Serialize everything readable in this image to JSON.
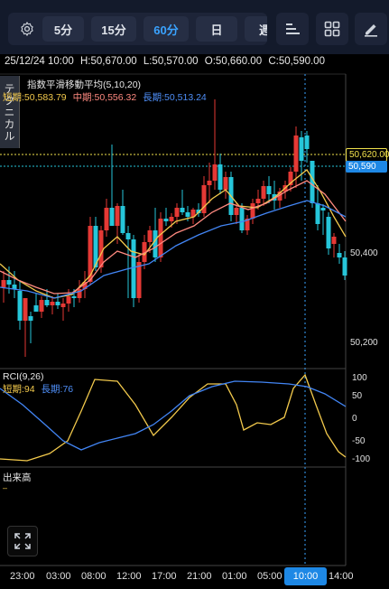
{
  "toolbar": {
    "timeframes": [
      {
        "label": "5分",
        "active": false
      },
      {
        "label": "15分",
        "active": false
      },
      {
        "label": "60分",
        "active": true
      },
      {
        "label": "日",
        "active": false
      },
      {
        "label": "週",
        "active": false
      }
    ]
  },
  "info": {
    "datetime": "25/12/24 10:00",
    "high": "H:50,670.00",
    "low": "L:50,570.00",
    "open": "O:50,660.00",
    "close": "C:50,590.00"
  },
  "side_tab": {
    "label": "テクニカル"
  },
  "main_legend": {
    "title": "指数平滑移動平均(5,10,20)",
    "short": "短期:50,583.79",
    "mid": "中期:50,556.32",
    "long": "長期:50,513.24"
  },
  "price_labels": {
    "alert": "50,620.00",
    "current": "50,590"
  },
  "price_axis": [
    "50,400",
    "50,200"
  ],
  "rci": {
    "title": "RCI(9,26)",
    "short": "短期:94",
    "long": "長期:76",
    "axis": [
      "100",
      "50",
      "0",
      "-50",
      "-100"
    ]
  },
  "volume": {
    "title": "出来高"
  },
  "time_axis": [
    "23:00",
    "03:00",
    "08:00",
    "12:00",
    "17:00",
    "21:00",
    "01:00",
    "05:00",
    "14:00"
  ],
  "time_current": "10:00",
  "colors": {
    "up": "#e53935",
    "down": "#26c6da",
    "ema_short": "#f2c94c",
    "ema_mid": "#ff8a80",
    "ema_long": "#4285f4",
    "accent": "#1e88e5"
  }
}
